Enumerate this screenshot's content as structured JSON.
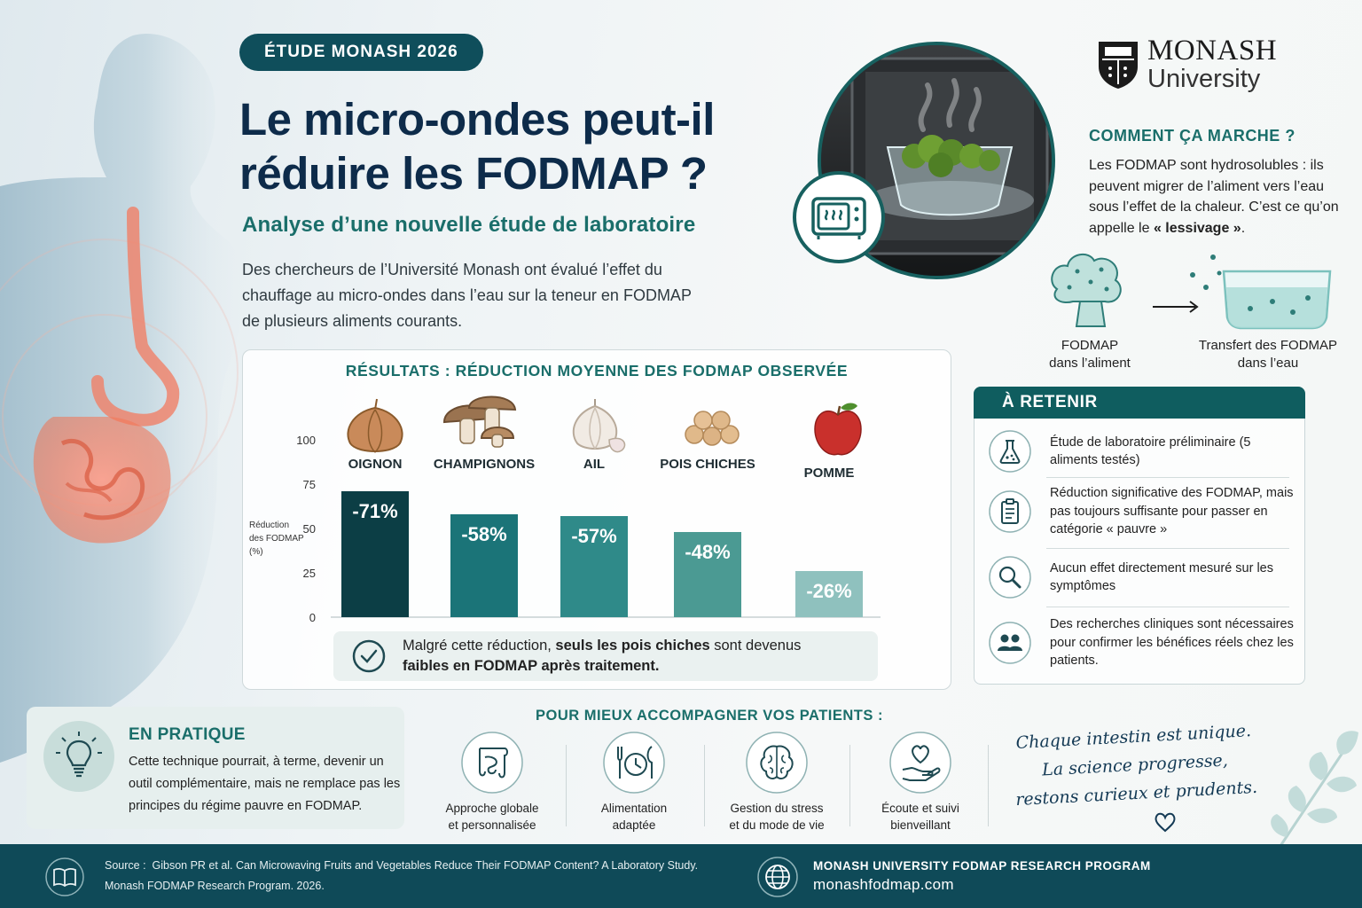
{
  "header": {
    "badge": "ÉTUDE MONASH 2026",
    "title": "Le micro-ondes peut-il\nréduire les FODMAP ?",
    "subtitle": "Analyse d’une nouvelle étude de laboratoire",
    "intro": "Des chercheurs de l’Université Monash ont évalué l’effet du\nchauffage au micro-ondes dans l’eau sur la teneur en FODMAP\nde plusieurs aliments courants."
  },
  "logo": {
    "line1": "MONASH",
    "line2": "University"
  },
  "how": {
    "title": "COMMENT ÇA MARCHE ?",
    "text_before": "Les FODMAP sont hydrosolubles : ils peuvent migrer de l’aliment vers l’eau sous l’effet de la chaleur. C’est ce qu’on appelle le ",
    "text_bold": "« lessivage »",
    "text_after": ".",
    "caption_left": "FODMAP\ndans l’aliment",
    "caption_right": "Transfert des FODMAP\ndans l’eau"
  },
  "results": {
    "title": "RÉSULTATS : RÉDUCTION MOYENNE DES FODMAP OBSERVÉE",
    "note_before": "Malgré cette réduction, ",
    "note_bold1": "seuls les pois chiches",
    "note_mid": " sont devenus ",
    "note_bold2": "faibles en FODMAP après traitement."
  },
  "chart_data": {
    "type": "bar",
    "categories": [
      "OIGNON",
      "CHAMPIGNONS",
      "AIL",
      "POIS CHICHES",
      "POMME"
    ],
    "values": [
      71,
      58,
      57,
      48,
      26
    ],
    "value_labels": [
      "-71%",
      "-58%",
      "-57%",
      "-48%",
      "-26%"
    ],
    "ylabel": "Réduction\ndes FODMAP\n(%)",
    "yticks": [
      0,
      25,
      50,
      75,
      100
    ],
    "ylim": [
      0,
      100
    ],
    "grid": false,
    "colors": [
      "#0c3e45",
      "#1b7478",
      "#2f8a89",
      "#4b9a93",
      "#8fc1be"
    ]
  },
  "retenir": {
    "title": "À RETENIR",
    "items": [
      {
        "icon": "flask-icon",
        "text": "Étude de laboratoire préliminaire (5 aliments testés)"
      },
      {
        "icon": "clipboard-icon",
        "text": "Réduction significative des FODMAP, mais pas toujours suffisante pour passer en catégorie « pauvre »"
      },
      {
        "icon": "magnifier-icon",
        "text": "Aucun effet directement mesuré sur les symptômes"
      },
      {
        "icon": "people-icon",
        "text": "Des recherches cliniques sont nécessaires pour confirmer les bénéfices réels chez les patients."
      }
    ]
  },
  "pratique": {
    "title": "EN PRATIQUE",
    "text": "Cette technique pourrait, à terme, devenir un outil complémentaire, mais ne remplace pas les principes du régime pauvre en FODMAP."
  },
  "accompagner": {
    "title": "POUR MIEUX ACCOMPAGNER VOS PATIENTS :",
    "items": [
      {
        "icon": "intestine-icon",
        "label": "Approche globale\net personnalisée"
      },
      {
        "icon": "plate-icon",
        "label": "Alimentation\nadaptée"
      },
      {
        "icon": "brain-icon",
        "label": "Gestion du stress\net du mode de vie"
      },
      {
        "icon": "heart-hand-icon",
        "label": "Écoute et suivi\nbienveillant"
      }
    ]
  },
  "quote": "Chaque intestin est unique.\nLa science progresse,\nrestons curieux et prudents.",
  "footer": {
    "source_label": "Source :",
    "source_line1": "Gibson PR et al. Can Microwaving Fruits and Vegetables Reduce Their FODMAP Content? A Laboratory Study.",
    "source_line2": "Monash FODMAP Research Program. 2026.",
    "program": "MONASH UNIVERSITY FODMAP RESEARCH PROGRAM",
    "url": "monashfodmap.com"
  },
  "colors": {
    "primary": "#0f4e5b",
    "teal": "#1a6e6a",
    "title": "#0d2b4a",
    "footer": "#0f4a58"
  }
}
